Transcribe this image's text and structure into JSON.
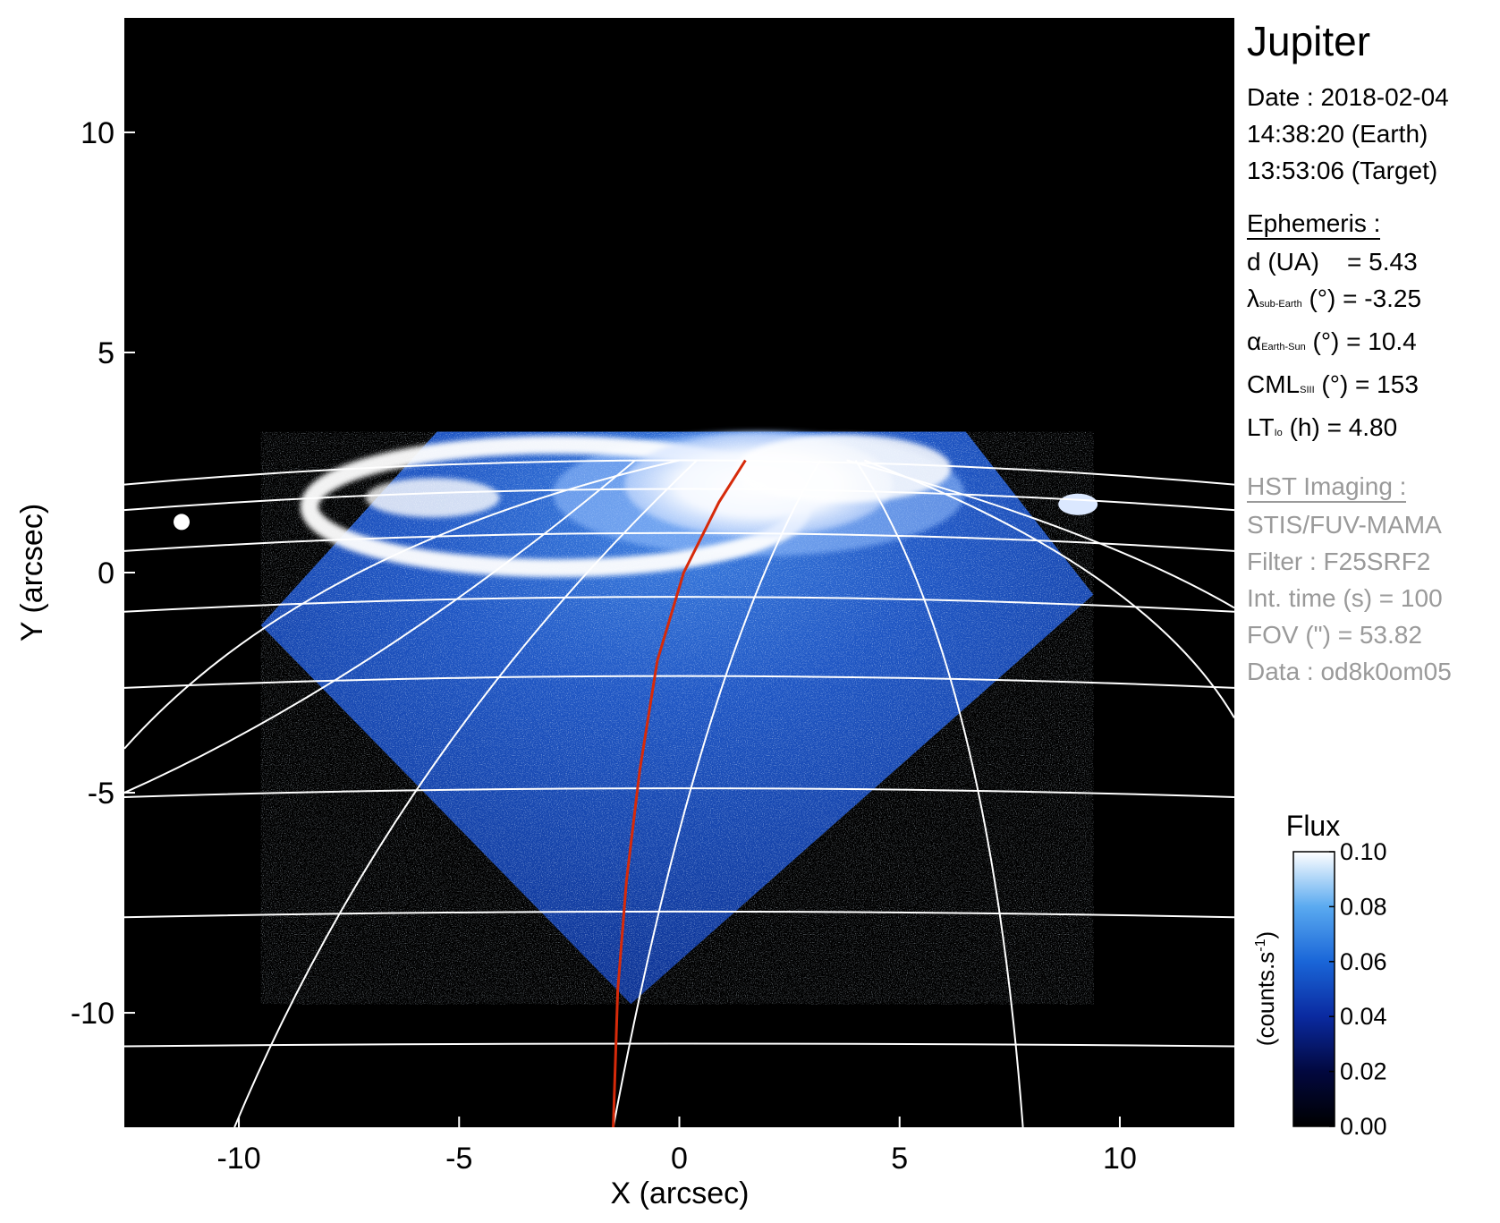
{
  "title": "Jupiter",
  "observation": {
    "date_line": "Date : 2018-02-04",
    "earth_time": "14:38:20 (Earth)",
    "target_time": "13:53:06 (Target)"
  },
  "ephemeris": {
    "heading": "Ephemeris :",
    "d_label": "d (UA)",
    "d_value": "= 5.43",
    "lat_symbol": "λ",
    "lat_sub": "sub-Earth",
    "lat_rest": " (°) = -3.25",
    "phase_symbol": "α",
    "phase_sub": "Earth-Sun",
    "phase_rest": " (°) = 10.4",
    "cml_symbol": "CML",
    "cml_sub": "SIII",
    "cml_rest": " (°) = 153",
    "lt_symbol": "LT",
    "lt_sub": "Io",
    "lt_rest": " (h) = 4.80"
  },
  "hst": {
    "heading": "HST Imaging :",
    "instrument": "STIS/FUV-MAMA",
    "filter": "Filter : F25SRF2",
    "int_time": "Int. time (s) = 100",
    "fov": "FOV (\") = 53.82",
    "data": "Data : od8k0om05"
  },
  "chart_data": {
    "type": "heatmap",
    "xlabel": "X (arcsec)",
    "ylabel": "Y (arcsec)",
    "xlim": [
      -12.6,
      12.6
    ],
    "ylim": [
      -12.6,
      12.6
    ],
    "xticks": [
      -10,
      -5,
      0,
      5,
      10
    ],
    "yticks": [
      10,
      5,
      0,
      -5,
      -10
    ],
    "xtick_labels": [
      "-10",
      "-5",
      "0",
      "5",
      "10"
    ],
    "ytick_labels": [
      "10",
      "5",
      "0",
      "-5",
      "-10"
    ],
    "colorbar": {
      "title": "Flux",
      "unit_label": "(counts.s",
      "unit_exponent": "-1",
      "unit_close": ")",
      "ticks": [
        0.0,
        0.02,
        0.04,
        0.06,
        0.08,
        0.1
      ],
      "tick_labels": [
        "0.00",
        "0.02",
        "0.04",
        "0.06",
        "0.08",
        "0.10"
      ],
      "range": [
        0.0,
        0.1
      ],
      "colors": [
        "#000000",
        "#02083f",
        "#0a2aa0",
        "#1a66d8",
        "#5aaaf0",
        "#ffffff"
      ]
    },
    "field_of_view": {
      "vertices": [
        [
          -9.5,
          -1.2
        ],
        [
          -5.5,
          3.2
        ],
        [
          6.5,
          3.2
        ],
        [
          9.4,
          -0.5
        ],
        [
          -1.1,
          -9.8
        ]
      ]
    },
    "auroral_emission": {
      "main_oval_center": [
        -2.8,
        1.5
      ],
      "main_oval_radii": [
        5.6,
        1.4
      ],
      "polar_center": [
        1.8,
        2.0
      ]
    },
    "footprint_track": {
      "color": "#d62a0a",
      "points": [
        [
          1.5,
          2.55
        ],
        [
          0.9,
          1.6
        ],
        [
          0.1,
          0.0
        ],
        [
          -0.5,
          -2.0
        ],
        [
          -0.9,
          -4.5
        ],
        [
          -1.2,
          -7.0
        ],
        [
          -1.4,
          -9.5
        ],
        [
          -1.5,
          -12.6
        ]
      ]
    },
    "grid_color": "#ffffff",
    "background": "#000000"
  }
}
